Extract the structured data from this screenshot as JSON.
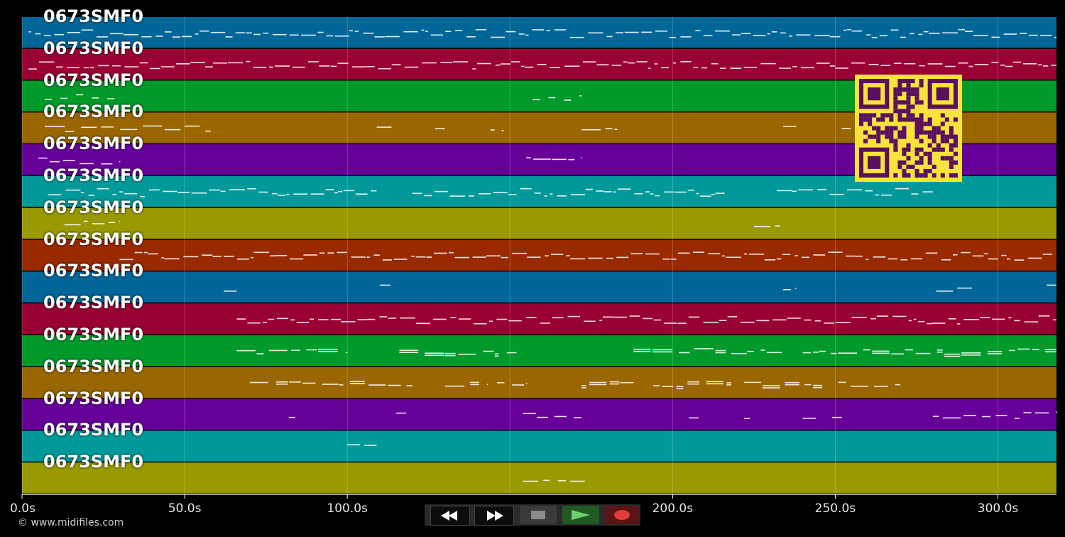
{
  "lanes": [
    {
      "label": "0673SMF0",
      "color": "#006698"
    },
    {
      "label": "0673SMF0",
      "color": "#990033"
    },
    {
      "label": "0673SMF0",
      "color": "#009A2A"
    },
    {
      "label": "0673SMF0",
      "color": "#996600"
    },
    {
      "label": "0673SMF0",
      "color": "#660099"
    },
    {
      "label": "0673SMF0",
      "color": "#009999"
    },
    {
      "label": "0673SMF0",
      "color": "#999900"
    },
    {
      "label": "0673SMF0",
      "color": "#992A00"
    },
    {
      "label": "0673SMF0",
      "color": "#006698"
    },
    {
      "label": "0673SMF0",
      "color": "#990033"
    },
    {
      "label": "0673SMF0",
      "color": "#009A2A"
    },
    {
      "label": "0673SMF0",
      "color": "#996600"
    },
    {
      "label": "0673SMF0",
      "color": "#660099"
    },
    {
      "label": "0673SMF0",
      "color": "#009999"
    },
    {
      "label": "0673SMF0",
      "color": "#999900"
    }
  ],
  "timeline": {
    "ticks": [
      "0.0s",
      "50.0s",
      "100.0s",
      "200.0s",
      "250.0s",
      "300.0s"
    ],
    "tick_values": [
      0,
      50,
      100,
      200,
      250,
      300
    ],
    "hidden_tick_value": 150,
    "max_seconds": 318
  },
  "notes": [
    {
      "lane": 0,
      "segments": [
        [
          2,
          318
        ]
      ],
      "density": "dense"
    },
    {
      "lane": 1,
      "segments": [
        [
          2,
          318
        ]
      ],
      "density": "dense"
    },
    {
      "lane": 2,
      "segments": [
        [
          7,
          30
        ],
        [
          157,
          172
        ]
      ],
      "density": "dashed"
    },
    {
      "lane": 3,
      "segments": [
        [
          7,
          58
        ],
        [
          109,
          114
        ],
        [
          127,
          130
        ],
        [
          144,
          148
        ],
        [
          172,
          183
        ],
        [
          234,
          238
        ],
        [
          252,
          256
        ]
      ],
      "density": "sparse"
    },
    {
      "lane": 4,
      "segments": [
        [
          5,
          30
        ],
        [
          155,
          172
        ]
      ],
      "density": "sparse"
    },
    {
      "lane": 5,
      "segments": [
        [
          8,
          109
        ],
        [
          120,
          216
        ],
        [
          232,
          280
        ]
      ],
      "density": "dense"
    },
    {
      "lane": 6,
      "segments": [
        [
          13,
          30
        ],
        [
          225,
          233
        ]
      ],
      "density": "sparse"
    },
    {
      "lane": 7,
      "segments": [
        [
          30,
          318
        ]
      ],
      "density": "dense"
    },
    {
      "lane": 8,
      "segments": [
        [
          62,
          66
        ],
        [
          110,
          114
        ],
        [
          234,
          238
        ],
        [
          281,
          293
        ],
        [
          315,
          318
        ]
      ],
      "density": "sparse"
    },
    {
      "lane": 9,
      "segments": [
        [
          66,
          318
        ]
      ],
      "density": "dense"
    },
    {
      "lane": 10,
      "segments": [
        [
          66,
          100
        ],
        [
          116,
          152
        ],
        [
          188,
          235
        ],
        [
          240,
          318
        ]
      ],
      "density": "medium"
    },
    {
      "lane": 11,
      "segments": [
        [
          70,
          120
        ],
        [
          130,
          143
        ],
        [
          146,
          155
        ],
        [
          172,
          188
        ],
        [
          194,
          218
        ],
        [
          222,
          246
        ],
        [
          251,
          270
        ]
      ],
      "density": "medium"
    },
    {
      "lane": 12,
      "segments": [
        [
          82,
          84
        ],
        [
          115,
          120
        ],
        [
          154,
          172
        ],
        [
          205,
          208
        ],
        [
          222,
          224
        ],
        [
          240,
          244
        ],
        [
          249,
          252
        ],
        [
          280,
          318
        ]
      ],
      "density": "sparse"
    },
    {
      "lane": 13,
      "segments": [
        [
          100,
          109
        ]
      ],
      "density": "sparse"
    },
    {
      "lane": 14,
      "segments": [
        [
          154,
          173
        ]
      ],
      "density": "sparse"
    }
  ],
  "colors": {
    "background": "#000000",
    "grid": "#ffffff",
    "qr_background": "#f8e33c",
    "qr_foreground": "#5a1060"
  },
  "qr_icon": "qr-code-icon",
  "copyright": "© www.midifiles.com",
  "controls": [
    {
      "icon": "rewind-icon",
      "color": "#ffffff"
    },
    {
      "icon": "fast-forward-icon",
      "color": "#ffffff"
    },
    {
      "icon": "stop-icon",
      "color": "#8a8a8a"
    },
    {
      "icon": "play-icon",
      "color": "#6fd06f"
    },
    {
      "icon": "record-icon",
      "color": "#e23b3b"
    }
  ]
}
